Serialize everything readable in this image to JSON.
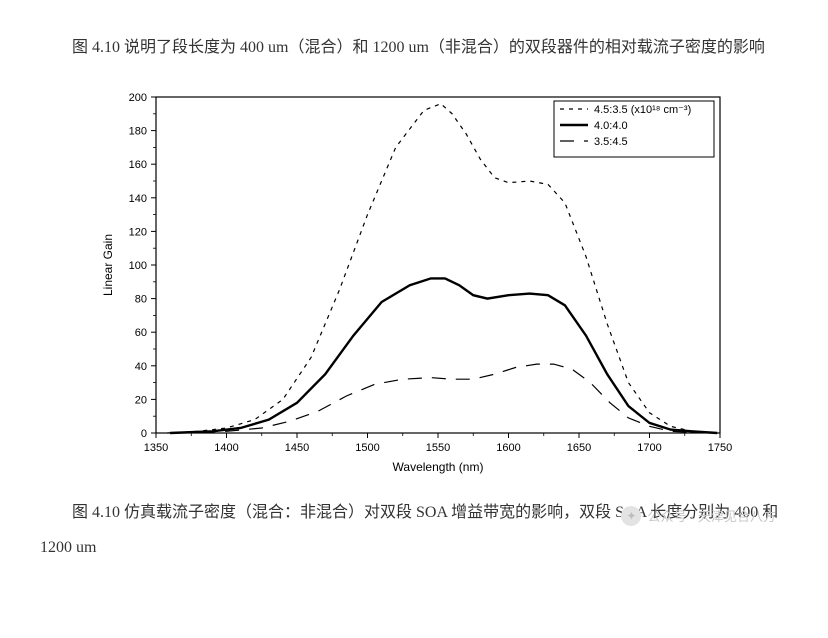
{
  "intro_text": "图 4.10 说明了段长度为 400 um（混合）和 1200 um（非混合）的双段器件的相对载流子密度的影响",
  "caption_text": "图 4.10 仿真载流子密度（混合：非混合）对双段 SOA 增益带宽的影响，双段 SOA 长度分别为 400 和 1200 um",
  "watermark": {
    "label": "公众号 · 天津见合八方"
  },
  "chart": {
    "type": "line",
    "background_color": "#ffffff",
    "axis_color": "#000000",
    "tick_color": "#000000",
    "tick_fontsize": 11,
    "label_fontsize": 12,
    "xlabel": "Wavelength (nm)",
    "ylabel": "Linear Gain",
    "xlim": [
      1350,
      1750
    ],
    "ylim": [
      0,
      200
    ],
    "xticks": [
      1350,
      1400,
      1450,
      1500,
      1550,
      1600,
      1650,
      1700,
      1750
    ],
    "yticks": [
      0,
      20,
      40,
      60,
      80,
      100,
      120,
      140,
      160,
      180,
      200
    ],
    "legend": {
      "title_series_unit": "(x10¹⁸ cm⁻³)",
      "items": [
        {
          "label": "4.5:3.5 (x10¹⁸ cm⁻³)",
          "style": "short-dash",
          "width": 1.2,
          "color": "#000000"
        },
        {
          "label": "4.0:4.0",
          "style": "solid",
          "width": 2.4,
          "color": "#000000"
        },
        {
          "label": "3.5:4.5",
          "style": "long-dash",
          "width": 1.2,
          "color": "#000000"
        }
      ],
      "box_color": "#000000",
      "position": "top-right"
    },
    "series": [
      {
        "name": "4.5:3.5",
        "color": "#000000",
        "style": "short-dash",
        "width": 1.2,
        "points": [
          [
            1358,
            0
          ],
          [
            1380,
            1
          ],
          [
            1400,
            3
          ],
          [
            1420,
            8
          ],
          [
            1440,
            20
          ],
          [
            1460,
            45
          ],
          [
            1480,
            85
          ],
          [
            1500,
            130
          ],
          [
            1520,
            170
          ],
          [
            1540,
            192
          ],
          [
            1552,
            196
          ],
          [
            1560,
            190
          ],
          [
            1570,
            178
          ],
          [
            1580,
            163
          ],
          [
            1590,
            152
          ],
          [
            1600,
            149
          ],
          [
            1615,
            150
          ],
          [
            1628,
            148
          ],
          [
            1640,
            137
          ],
          [
            1655,
            105
          ],
          [
            1670,
            65
          ],
          [
            1685,
            30
          ],
          [
            1700,
            12
          ],
          [
            1715,
            4
          ],
          [
            1730,
            1
          ],
          [
            1748,
            0
          ]
        ]
      },
      {
        "name": "4.0:4.0",
        "color": "#000000",
        "style": "solid",
        "width": 2.4,
        "points": [
          [
            1360,
            0
          ],
          [
            1390,
            1
          ],
          [
            1410,
            3
          ],
          [
            1430,
            8
          ],
          [
            1450,
            18
          ],
          [
            1470,
            35
          ],
          [
            1490,
            58
          ],
          [
            1510,
            78
          ],
          [
            1530,
            88
          ],
          [
            1545,
            92
          ],
          [
            1555,
            92
          ],
          [
            1565,
            88
          ],
          [
            1575,
            82
          ],
          [
            1585,
            80
          ],
          [
            1600,
            82
          ],
          [
            1615,
            83
          ],
          [
            1628,
            82
          ],
          [
            1640,
            76
          ],
          [
            1655,
            58
          ],
          [
            1670,
            35
          ],
          [
            1685,
            16
          ],
          [
            1700,
            6
          ],
          [
            1715,
            2
          ],
          [
            1730,
            1
          ],
          [
            1748,
            0
          ]
        ]
      },
      {
        "name": "3.5:4.5",
        "color": "#000000",
        "style": "long-dash",
        "width": 1.2,
        "points": [
          [
            1365,
            0
          ],
          [
            1400,
            1
          ],
          [
            1425,
            3
          ],
          [
            1445,
            7
          ],
          [
            1465,
            13
          ],
          [
            1485,
            22
          ],
          [
            1505,
            29
          ],
          [
            1525,
            32
          ],
          [
            1545,
            33
          ],
          [
            1560,
            32
          ],
          [
            1575,
            32
          ],
          [
            1590,
            35
          ],
          [
            1605,
            39
          ],
          [
            1620,
            41
          ],
          [
            1632,
            41
          ],
          [
            1645,
            38
          ],
          [
            1658,
            30
          ],
          [
            1672,
            18
          ],
          [
            1685,
            9
          ],
          [
            1700,
            4
          ],
          [
            1715,
            1
          ],
          [
            1730,
            0.5
          ],
          [
            1748,
            0
          ]
        ]
      }
    ]
  }
}
